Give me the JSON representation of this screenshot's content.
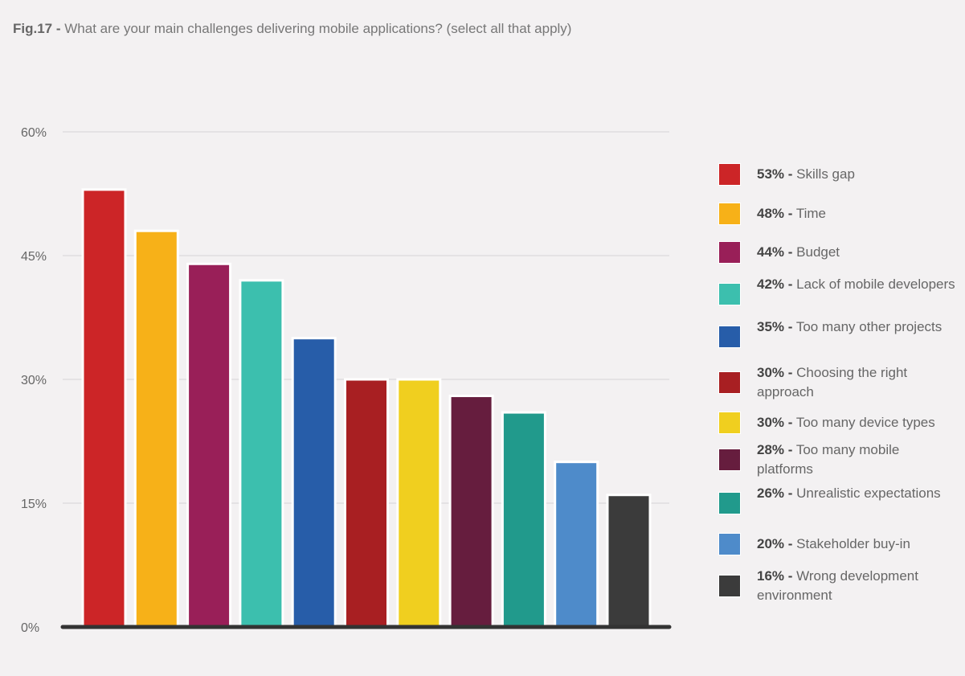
{
  "figure": {
    "number": "Fig.17 -",
    "question": "What are your main challenges delivering mobile applications? (select all that apply)"
  },
  "chart_data": {
    "type": "bar",
    "title": "What are your main challenges delivering mobile applications? (select all that apply)",
    "ylim": [
      0,
      60
    ],
    "yticks": [
      "0%",
      "15%",
      "30%",
      "45%",
      "60%"
    ],
    "ytick_values": [
      0,
      15,
      30,
      45,
      60
    ],
    "grid": true,
    "legend_position": "right",
    "series": [
      {
        "label": "Skills gap",
        "value": 53,
        "value_label": "53% -",
        "color": "#cc2527"
      },
      {
        "label": "Time",
        "value": 48,
        "value_label": "48% -",
        "color": "#f7b118"
      },
      {
        "label": "Budget",
        "value": 44,
        "value_label": "44% -",
        "color": "#991f58"
      },
      {
        "label": "Lack of mobile developers",
        "value": 42,
        "value_label": "42% -",
        "color": "#3cbfae"
      },
      {
        "label": "Too many other projects",
        "value": 35,
        "value_label": "35% -",
        "color": "#275da9"
      },
      {
        "label": "Choosing the right approach",
        "value": 30,
        "value_label": "30% -",
        "color": "#a81f22"
      },
      {
        "label": "Too many device types",
        "value": 30,
        "value_label": "30% -",
        "color": "#f0cf1f"
      },
      {
        "label": "Too many mobile platforms",
        "value": 28,
        "value_label": "28% -",
        "color": "#661d3e"
      },
      {
        "label": "Unrealistic expectations",
        "value": 26,
        "value_label": "26% -",
        "color": "#219a8c"
      },
      {
        "label": "Stakeholder buy-in",
        "value": 20,
        "value_label": "20% -",
        "color": "#4e8bca"
      },
      {
        "label": "Wrong development environment",
        "value": 16,
        "value_label": "16% -",
        "color": "#3b3b3b"
      }
    ]
  }
}
